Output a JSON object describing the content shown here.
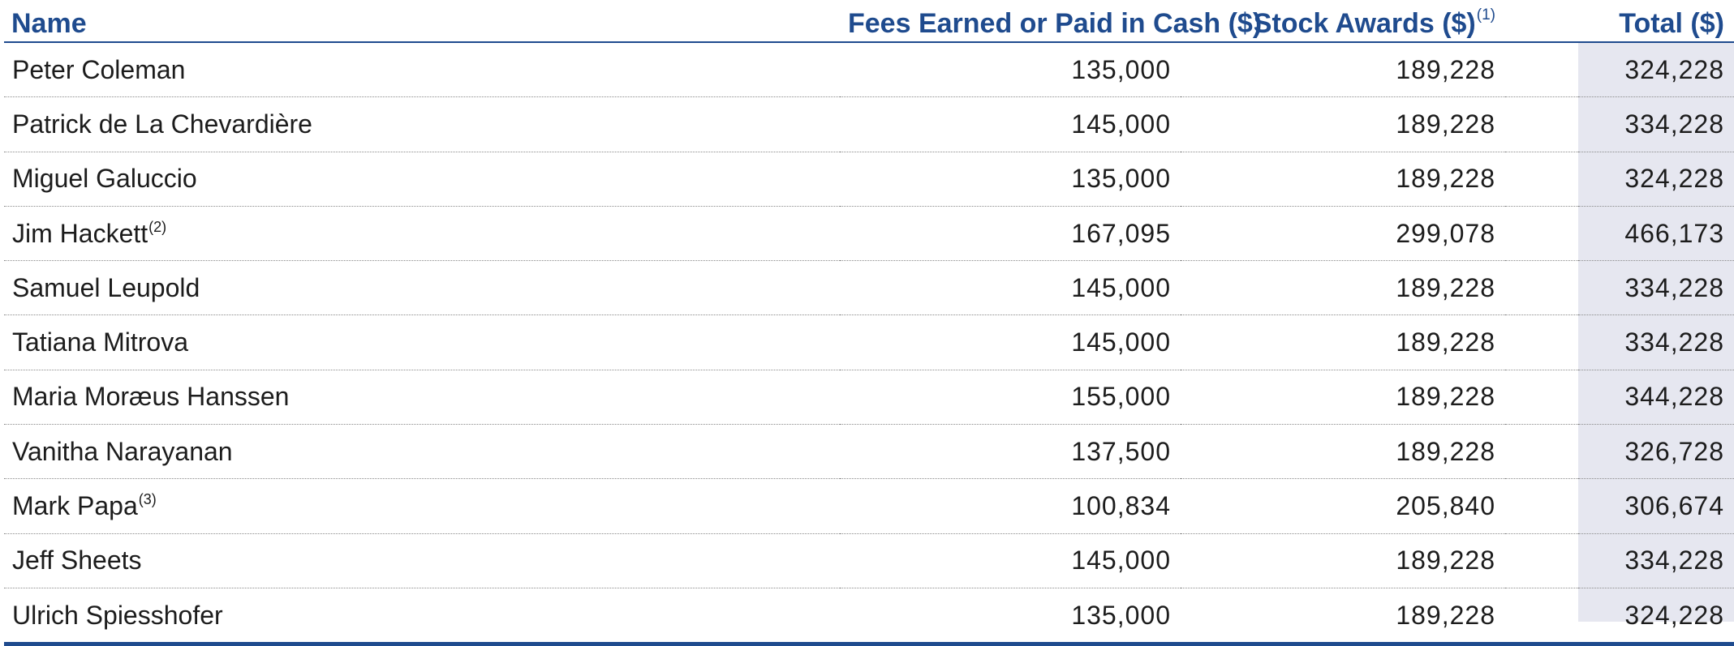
{
  "header": {
    "name": "Name",
    "fees": "Fees Earned or Paid in Cash ($)",
    "stock": "Stock Awards ($)",
    "stock_note": "(1)",
    "total": "Total ($)"
  },
  "rows": [
    {
      "name": "Peter Coleman",
      "note": "",
      "fees": "135,000",
      "stock": "189,228",
      "total": "324,228"
    },
    {
      "name": "Patrick de La Chevardière",
      "note": "",
      "fees": "145,000",
      "stock": "189,228",
      "total": "334,228"
    },
    {
      "name": "Miguel Galuccio",
      "note": "",
      "fees": "135,000",
      "stock": "189,228",
      "total": "324,228"
    },
    {
      "name": "Jim Hackett",
      "note": "(2)",
      "fees": "167,095",
      "stock": "299,078",
      "total": "466,173"
    },
    {
      "name": "Samuel Leupold",
      "note": "",
      "fees": "145,000",
      "stock": "189,228",
      "total": "334,228"
    },
    {
      "name": "Tatiana Mitrova",
      "note": "",
      "fees": "145,000",
      "stock": "189,228",
      "total": "334,228"
    },
    {
      "name": "Maria Moræus Hanssen",
      "note": "",
      "fees": "155,000",
      "stock": "189,228",
      "total": "344,228"
    },
    {
      "name": "Vanitha Narayanan",
      "note": "",
      "fees": "137,500",
      "stock": "189,228",
      "total": "326,728"
    },
    {
      "name": "Mark Papa",
      "note": "(3)",
      "fees": "100,834",
      "stock": "205,840",
      "total": "306,674"
    },
    {
      "name": "Jeff Sheets",
      "note": "",
      "fees": "145,000",
      "stock": "189,228",
      "total": "334,228"
    },
    {
      "name": "Ulrich Spiesshofer",
      "note": "",
      "fees": "135,000",
      "stock": "189,228",
      "total": "324,228"
    }
  ],
  "colors": {
    "header_text": "#1f4b8e",
    "total_column_bg": "#e6e7f0",
    "rule": "#1f4b8e"
  }
}
